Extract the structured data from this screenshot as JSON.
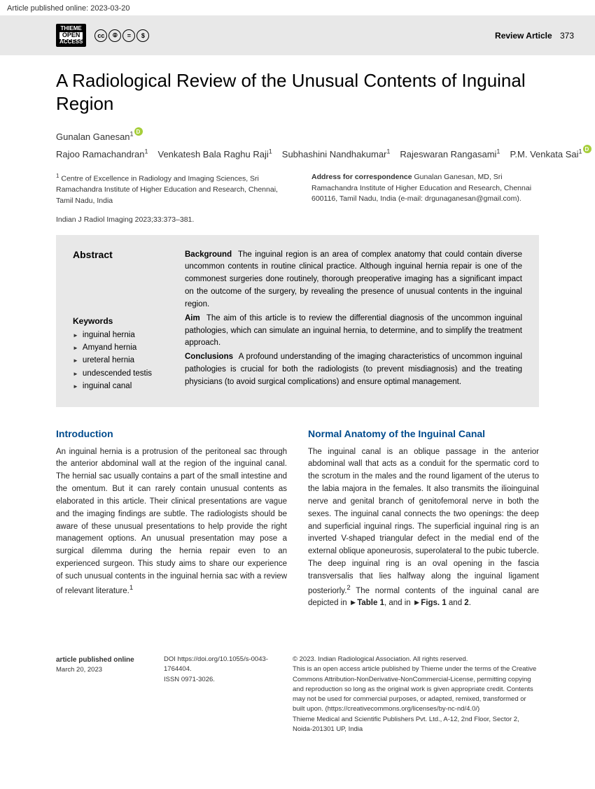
{
  "pubDate": "Article published online: 2023-03-20",
  "header": {
    "badge": {
      "top": "THIEME",
      "mid": "OPEN",
      "bot": "ACCESS"
    },
    "articleType": "Review Article",
    "pageNum": "373"
  },
  "title": "A Radiological Review of the Unusual Contents of Inguinal Region",
  "authors": [
    {
      "name": "Gunalan Ganesan",
      "aff": "1",
      "orcid": true
    },
    {
      "name": "Rajoo Ramachandran",
      "aff": "1",
      "orcid": false
    },
    {
      "name": "Venkatesh Bala Raghu Raji",
      "aff": "1",
      "orcid": false
    },
    {
      "name": "Subhashini Nandhakumar",
      "aff": "1",
      "orcid": false
    },
    {
      "name": "Rajeswaran Rangasami",
      "aff": "1",
      "orcid": false
    },
    {
      "name": "P.M. Venkata Sai",
      "aff": "1",
      "orcid": true
    }
  ],
  "affiliation": "Centre of Excellence in Radiology and Imaging Sciences, Sri Ramachandra Institute of Higher Education and Research, Chennai, Tamil Nadu, India",
  "correspondence": "Gunalan Ganesan, MD, Sri Ramachandra Institute of Higher Education and Research, Chennai 600116, Tamil Nadu, India (e-mail: drgunaganesan@gmail.com).",
  "citation": "Indian J Radiol Imaging 2023;33:373–381.",
  "abstract": {
    "heading": "Abstract",
    "keywordsTitle": "Keywords",
    "keywords": [
      "inguinal hernia",
      "Amyand hernia",
      "ureteral hernia",
      "undescended testis",
      "inguinal canal"
    ],
    "background": "The inguinal region is an area of complex anatomy that could contain diverse uncommon contents in routine clinical practice. Although inguinal hernia repair is one of the commonest surgeries done routinely, thorough preoperative imaging has a significant impact on the outcome of the surgery, by revealing the presence of unusual contents in the inguinal region.",
    "aim": "The aim of this article is to review the differential diagnosis of the uncommon inguinal pathologies, which can simulate an inguinal hernia, to determine, and to simplify the treatment approach.",
    "conclusions": "A profound understanding of the imaging characteristics of uncommon inguinal pathologies is crucial for both the radiologists (to prevent misdiagnosis) and the treating physicians (to avoid surgical complications) and ensure optimal management."
  },
  "body": {
    "intro": {
      "heading": "Introduction",
      "text": "An inguinal hernia is a protrusion of the peritoneal sac through the anterior abdominal wall at the region of the inguinal canal. The hernial sac usually contains a part of the small intestine and the omentum. But it can rarely contain unusual contents as elaborated in this article. Their clinical presentations are vague and the imaging findings are subtle. The radiologists should be aware of these unusual presentations to help provide the right management options. An unusual presentation may pose a surgical dilemma during the hernia repair even to an experienced surgeon. This study aims to share our experience of such unusual contents in the inguinal hernia sac with a review of relevant literature."
    },
    "anatomy": {
      "heading": "Normal Anatomy of the Inguinal Canal",
      "text": "The inguinal canal is an oblique passage in the anterior abdominal wall that acts as a conduit for the spermatic cord to the scrotum in the males and the round ligament of the uterus to the labia majora in the females. It also transmits the ilioinguinal nerve and genital branch of genitofemoral nerve in both the sexes. The inguinal canal connects the two openings: the deep and superficial inguinal rings. The superficial inguinal ring is an inverted V-shaped triangular defect in the medial end of the external oblique aponeurosis, superolateral to the pubic tubercle. The deep inguinal ring is an oval opening in the fascia transversalis that lies halfway along the inguinal ligament posteriorly.",
      "ref2": "2",
      "textEnd": " The normal contents of the inguinal canal are depicted in ",
      "table1": "►Table 1",
      "and": ", and in ",
      "figs": "►Figs. 1",
      "and2": " and ",
      "fig2": "2",
      "period": "."
    }
  },
  "footer": {
    "pubLabel": "article published online",
    "pubDate2": "March 20, 2023",
    "doiLabel": "DOI",
    "doi": "https://doi.org/10.1055/s-0043-1764404.",
    "issnLabel": "ISSN",
    "issn": "0971-3026.",
    "copyright": "© 2023. Indian Radiological Association. All rights reserved.",
    "license": "This is an open access article published by Thieme under the terms of the Creative Commons Attribution-NonDerivative-NonCommercial-License, permitting copying and reproduction so long as the original work is given appropriate credit. Contents may not be used for commercial purposes, or adapted, remixed, transformed or built upon. (https://creativecommons.org/licenses/by-nc-nd/4.0/)",
    "publisher": "Thieme Medical and Scientific Publishers Pvt. Ltd., A-12, 2nd Floor, Sector 2, Noida-201301 UP, India"
  }
}
